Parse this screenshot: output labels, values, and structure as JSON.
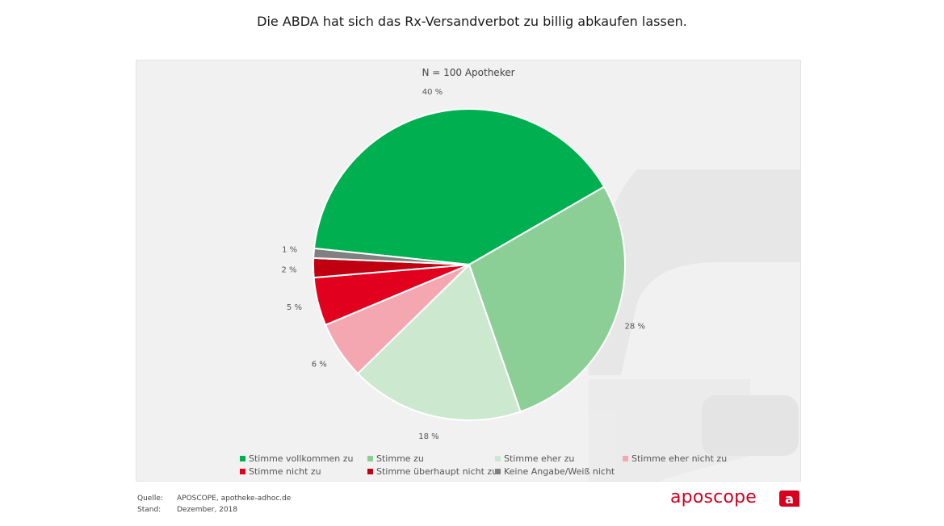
{
  "title": "Die ABDA hat sich das Rx-Versandverbot zu billig abkaufen lassen.",
  "subtitle": "N = 100 Apotheker",
  "chart_data": {
    "type": "pie",
    "title": "Die ABDA hat sich das Rx-Versandverbot zu billig abkaufen lassen.",
    "subtitle": "N = 100 Apotheker",
    "unit": "%",
    "slices": [
      {
        "label": "Stimme vollkommen zu",
        "value": 40,
        "display": "40 %",
        "color": "#00b050"
      },
      {
        "label": "Stimme zu",
        "value": 28,
        "display": "28 %",
        "color": "#8ccf96"
      },
      {
        "label": "Stimme eher zu",
        "value": 18,
        "display": "18 %",
        "color": "#cce8cf"
      },
      {
        "label": "Stimme eher nicht zu",
        "value": 6,
        "display": "6 %",
        "color": "#f4a7b0"
      },
      {
        "label": "Stimme nicht zu",
        "value": 5,
        "display": "5 %",
        "color": "#e1001d"
      },
      {
        "label": "Stimme überhaupt nicht zu",
        "value": 2,
        "display": "2 %",
        "color": "#c00010"
      },
      {
        "label": "Keine Angabe/Weiß nicht",
        "value": 1,
        "display": "1 %",
        "color": "#808080"
      }
    ],
    "legend_position": "bottom"
  },
  "footer": {
    "source_label": "Quelle:",
    "source_value": "APOSCOPE, apotheke-adhoc.de",
    "date_label": "Stand:",
    "date_value": "Dezember, 2018"
  },
  "brand": {
    "wordmark": "aposcope",
    "accent_color": "#d7001e"
  }
}
